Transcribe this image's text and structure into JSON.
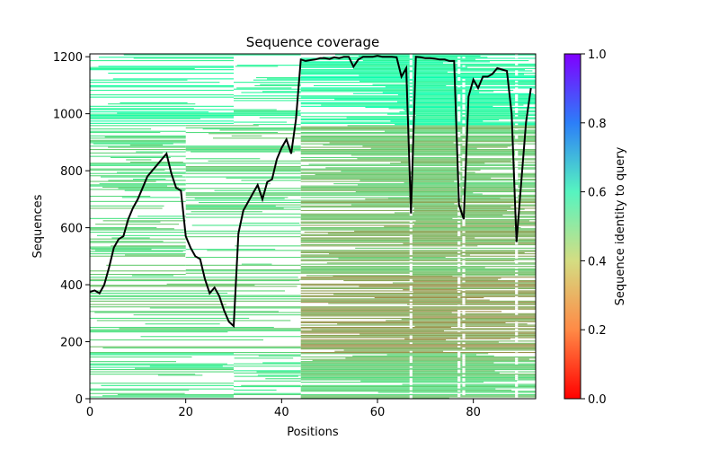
{
  "chart_data": {
    "type": "heatmap",
    "title": "Sequence coverage",
    "xlabel": "Positions",
    "ylabel": "Sequences",
    "xlim": [
      0,
      93
    ],
    "ylim": [
      0,
      1210
    ],
    "xticks": [
      "0",
      "20",
      "40",
      "60",
      "80"
    ],
    "yticks": [
      "0",
      "200",
      "400",
      "600",
      "800",
      "1000",
      "1200"
    ],
    "colorbar": {
      "label": "Sequence identity to query",
      "range": [
        0,
        1
      ],
      "ticks": [
        "0.0",
        "0.2",
        "0.4",
        "0.6",
        "0.8",
        "1.0"
      ],
      "colormap": "rainbow_r"
    },
    "coverage_line": {
      "name": "coverage",
      "color": "#000000",
      "x": [
        0,
        1,
        2,
        3,
        4,
        5,
        6,
        7,
        8,
        9,
        10,
        11,
        12,
        13,
        14,
        15,
        16,
        17,
        18,
        19,
        20,
        21,
        22,
        23,
        24,
        25,
        26,
        27,
        28,
        29,
        30,
        31,
        32,
        33,
        34,
        35,
        36,
        37,
        38,
        39,
        40,
        41,
        42,
        43,
        44,
        45,
        46,
        47,
        48,
        49,
        50,
        51,
        52,
        53,
        54,
        55,
        56,
        57,
        58,
        59,
        60,
        61,
        62,
        63,
        64,
        65,
        66,
        67,
        68,
        69,
        70,
        71,
        72,
        73,
        74,
        75,
        76,
        77,
        78,
        79,
        80,
        81,
        82,
        83,
        84,
        85,
        86,
        87,
        88,
        89,
        90,
        91,
        92
      ],
      "values": [
        375,
        380,
        370,
        400,
        460,
        530,
        560,
        570,
        630,
        670,
        700,
        740,
        780,
        800,
        820,
        840,
        860,
        790,
        740,
        730,
        570,
        530,
        500,
        490,
        420,
        370,
        390,
        360,
        310,
        270,
        255,
        580,
        660,
        690,
        720,
        750,
        700,
        760,
        770,
        840,
        880,
        910,
        860,
        980,
        1190,
        1185,
        1188,
        1190,
        1195,
        1195,
        1192,
        1198,
        1195,
        1200,
        1200,
        1165,
        1190,
        1200,
        1200,
        1200,
        1203,
        1200,
        1200,
        1200,
        1198,
        1130,
        1160,
        650,
        1200,
        1198,
        1195,
        1195,
        1193,
        1190,
        1190,
        1185,
        1185,
        680,
        630,
        1060,
        1120,
        1090,
        1130,
        1130,
        1140,
        1160,
        1155,
        1150,
        1000,
        550,
        760,
        970,
        1090
      ]
    },
    "blocks": [
      {
        "x0": 0,
        "x1": 30,
        "y0": 1210,
        "y1": 960,
        "identity": 0.42,
        "density": 0.5
      },
      {
        "x0": 30,
        "x1": 44,
        "y0": 1210,
        "y1": 960,
        "identity": 0.4,
        "density": 0.45
      },
      {
        "x0": 0,
        "x1": 20,
        "y0": 960,
        "y1": 700,
        "identity": 0.33,
        "density": 0.6
      },
      {
        "x0": 20,
        "x1": 44,
        "y0": 960,
        "y1": 700,
        "identity": 0.32,
        "density": 0.45
      },
      {
        "x0": 0,
        "x1": 20,
        "y0": 700,
        "y1": 430,
        "identity": 0.32,
        "density": 0.5
      },
      {
        "x0": 20,
        "x1": 44,
        "y0": 700,
        "y1": 430,
        "identity": 0.33,
        "density": 0.4
      },
      {
        "x0": 0,
        "x1": 44,
        "y0": 430,
        "y1": 160,
        "identity": 0.31,
        "density": 0.4
      },
      {
        "x0": 0,
        "x1": 30,
        "y0": 160,
        "y1": 0,
        "identity": 0.36,
        "density": 0.6
      },
      {
        "x0": 30,
        "x1": 44,
        "y0": 160,
        "y1": 0,
        "identity": 0.36,
        "density": 0.55
      },
      {
        "x0": 44,
        "x1": 93,
        "y0": 1210,
        "y1": 960,
        "identity": 0.44,
        "density": 0.96
      },
      {
        "x0": 44,
        "x1": 93,
        "y0": 960,
        "y1": 700,
        "identity": 0.29,
        "density": 0.93
      },
      {
        "x0": 44,
        "x1": 93,
        "y0": 700,
        "y1": 430,
        "identity": 0.26,
        "density": 0.93
      },
      {
        "x0": 44,
        "x1": 93,
        "y0": 430,
        "y1": 160,
        "identity": 0.22,
        "density": 0.95
      },
      {
        "x0": 44,
        "x1": 93,
        "y0": 160,
        "y1": 0,
        "identity": 0.3,
        "density": 0.95
      }
    ]
  }
}
